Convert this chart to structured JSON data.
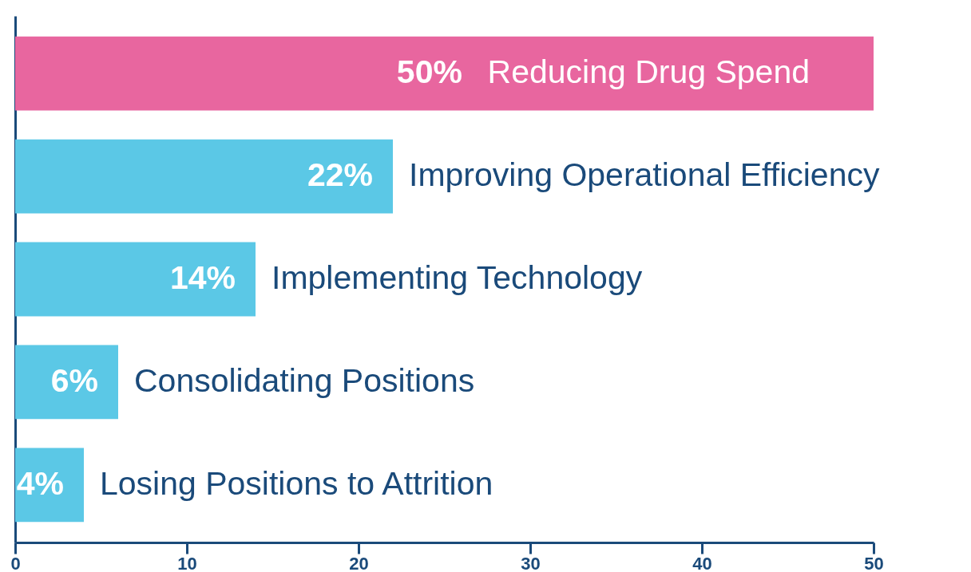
{
  "chart_data": {
    "type": "bar",
    "orientation": "horizontal",
    "categories": [
      "Reducing Drug Spend",
      "Improving Operational Efficiency",
      "Implementing Technology",
      "Consolidating Positions",
      "Losing Positions to Attrition"
    ],
    "values": [
      50,
      22,
      14,
      6,
      4
    ],
    "colors": [
      "#e8669f",
      "#5bc8e6",
      "#5bc8e6",
      "#5bc8e6",
      "#5bc8e6"
    ],
    "value_labels": [
      "50%",
      "22%",
      "14%",
      "6%",
      "4%"
    ],
    "xlim": [
      0,
      50
    ],
    "xticks": [
      0,
      10,
      20,
      30,
      40,
      50
    ],
    "grid": false
  }
}
